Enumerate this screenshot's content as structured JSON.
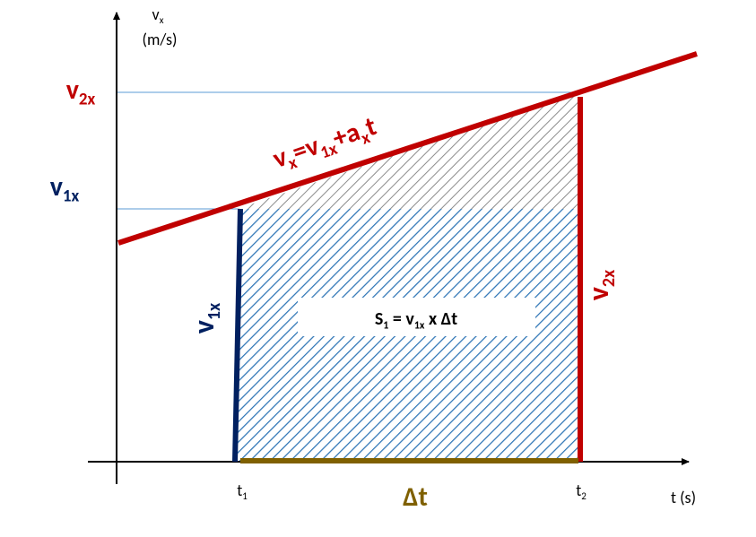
{
  "labels": {
    "y_axis": [
      "v",
      "x"
    ],
    "y_unit": [
      "(m/s)"
    ],
    "v2x_axis": [
      "v",
      "2x"
    ],
    "v1x_axis": [
      "v",
      "1x"
    ],
    "line_eq": [
      "v",
      "x",
      "=v",
      "1x",
      "+a",
      "x",
      "t"
    ],
    "v1x_side": [
      "v",
      "1x"
    ],
    "v2x_side": [
      "v",
      "2x"
    ],
    "area": [
      "S",
      "1",
      " = v",
      "1x",
      " x Δt"
    ],
    "t1": [
      "t",
      "1"
    ],
    "t2": [
      "t",
      "2"
    ],
    "x_axis": [
      "t (s)"
    ],
    "delta_t": [
      "Δt"
    ]
  }
}
